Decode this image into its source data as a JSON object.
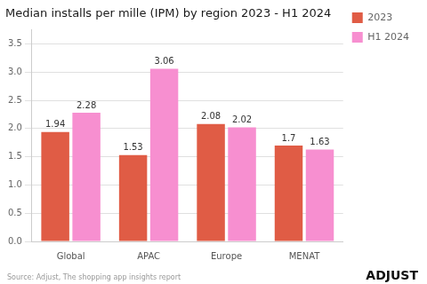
{
  "chart_data": {
    "type": "bar",
    "title": "Median installs per mille (IPM) by region 2023 - H1 2024",
    "categories": [
      "Global",
      "APAC",
      "Europe",
      "MENAT"
    ],
    "series": [
      {
        "name": "2023",
        "color": "#e05c45",
        "values": [
          1.94,
          1.53,
          2.08,
          1.7
        ]
      },
      {
        "name": "H1 2024",
        "color": "#f78fd0",
        "values": [
          2.28,
          3.06,
          2.02,
          1.63
        ]
      }
    ],
    "ylim": [
      0,
      3.75
    ],
    "yticks": [
      {
        "value": 0,
        "label": "0.0"
      },
      0.5,
      {
        "value": 1.0,
        "label": "1.0"
      },
      1.5,
      {
        "value": 2.0,
        "label": "2.0"
      },
      2.5,
      {
        "value": 3.0,
        "label": "3.0"
      },
      3.5
    ],
    "grid": true,
    "legend": "upper right",
    "data_labels": true,
    "annotations": [
      "Source: Adjust, The shopping app insights report",
      "ADJUST"
    ]
  }
}
